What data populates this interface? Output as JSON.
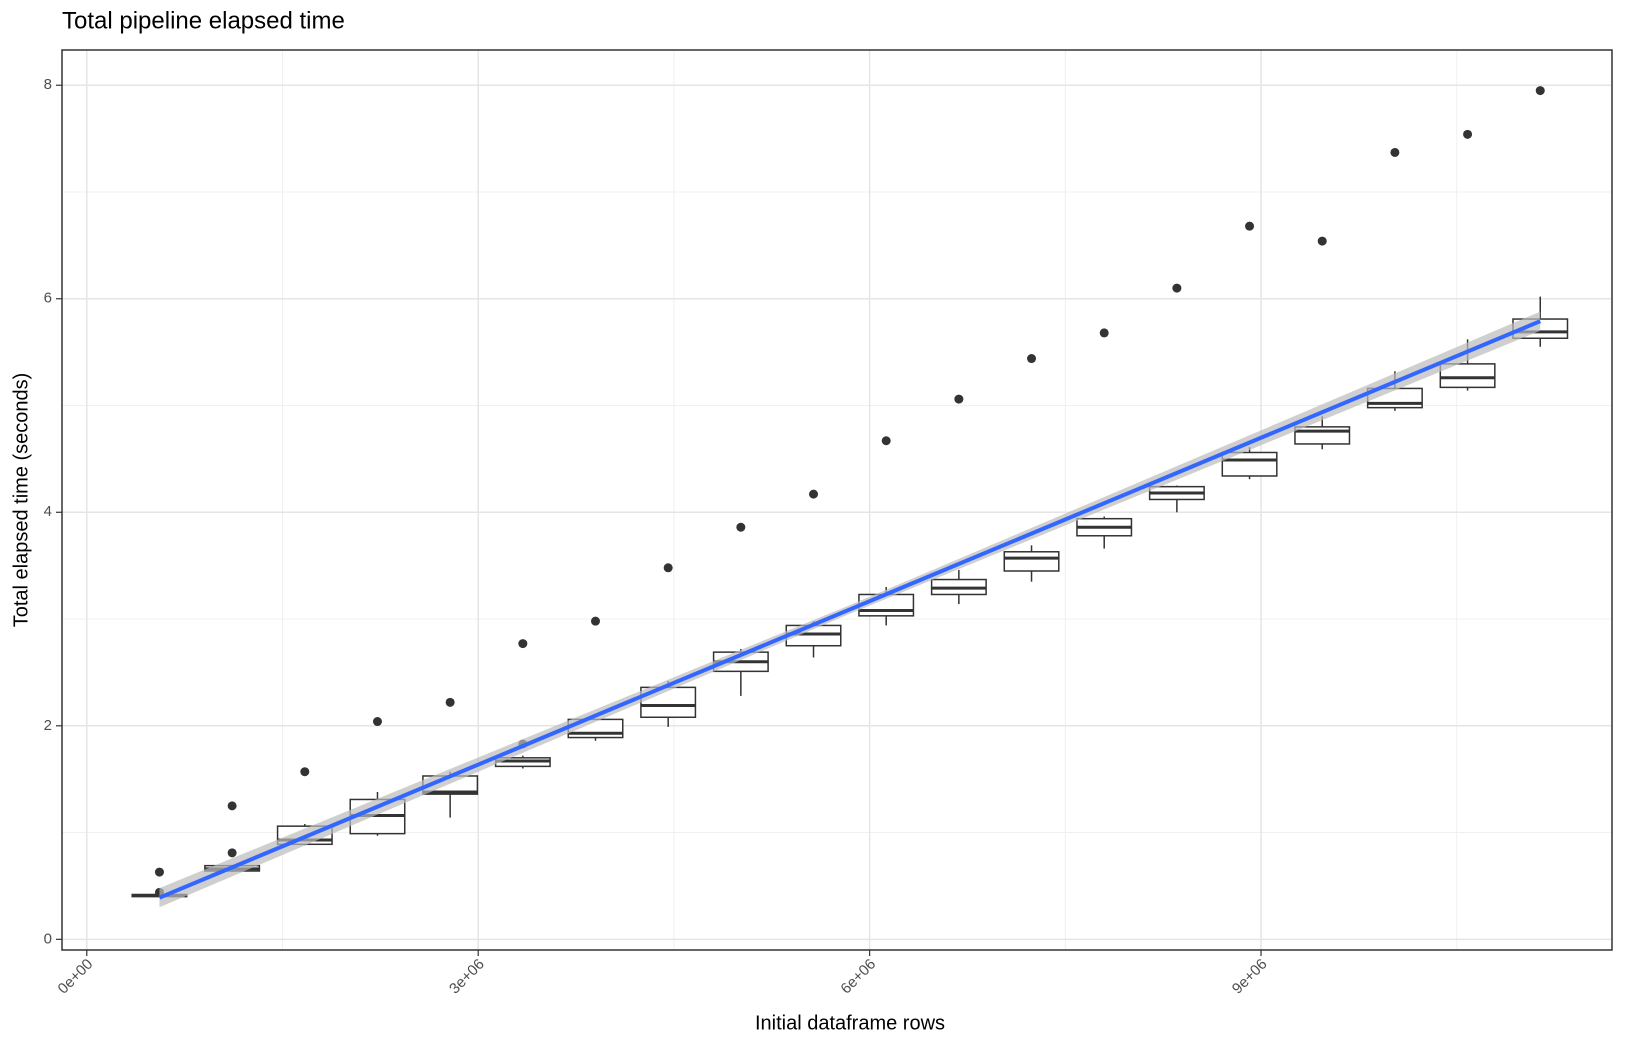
{
  "chart_data": {
    "type": "boxplot",
    "title": "Total pipeline elapsed time",
    "x_label": "Initial dataframe rows",
    "y_label": "Total elapsed time (seconds)",
    "xlim": [
      -190000,
      11690000
    ],
    "ylim": [
      -0.1,
      8.33
    ],
    "xticks": [
      {
        "value": 0,
        "label": "0e+00"
      },
      {
        "value": 3000000,
        "label": "3e+06"
      },
      {
        "value": 6000000,
        "label": "6e+06"
      },
      {
        "value": 9000000,
        "label": "9e+06"
      }
    ],
    "yticks": [
      0,
      2,
      4,
      6,
      8
    ],
    "x_minor_ticks": [
      1500000,
      4500000,
      7500000,
      10500000
    ],
    "y_minor_ticks": [
      1,
      3,
      5,
      7
    ],
    "grid": true,
    "box_color": "#333333",
    "boxes": [
      {
        "x": 557000,
        "lower_whisker": 0.4,
        "q1": 0.4,
        "median": 0.41,
        "q3": 0.42,
        "upper_whisker": 0.42,
        "outliers": [
          0.63,
          0.44
        ]
      },
      {
        "x": 1114000,
        "lower_whisker": 0.63,
        "q1": 0.64,
        "median": 0.66,
        "q3": 0.69,
        "upper_whisker": 0.69,
        "outliers": [
          1.25,
          0.81
        ]
      },
      {
        "x": 1671000,
        "lower_whisker": 0.88,
        "q1": 0.89,
        "median": 0.93,
        "q3": 1.06,
        "upper_whisker": 1.08,
        "outliers": [
          1.57
        ]
      },
      {
        "x": 2228000,
        "lower_whisker": 0.97,
        "q1": 0.99,
        "median": 1.16,
        "q3": 1.31,
        "upper_whisker": 1.38,
        "outliers": [
          2.04
        ]
      },
      {
        "x": 2785000,
        "lower_whisker": 1.14,
        "q1": 1.36,
        "median": 1.38,
        "q3": 1.53,
        "upper_whisker": 1.57,
        "outliers": [
          2.22
        ]
      },
      {
        "x": 3342000,
        "lower_whisker": 1.6,
        "q1": 1.62,
        "median": 1.67,
        "q3": 1.7,
        "upper_whisker": 1.72,
        "outliers": [
          2.77,
          1.83
        ]
      },
      {
        "x": 3899000,
        "lower_whisker": 1.86,
        "q1": 1.89,
        "median": 1.93,
        "q3": 2.06,
        "upper_whisker": 2.06,
        "outliers": [
          2.98
        ]
      },
      {
        "x": 4456000,
        "lower_whisker": 1.99,
        "q1": 2.08,
        "median": 2.19,
        "q3": 2.36,
        "upper_whisker": 2.42,
        "outliers": [
          3.48
        ]
      },
      {
        "x": 5013000,
        "lower_whisker": 2.28,
        "q1": 2.51,
        "median": 2.6,
        "q3": 2.69,
        "upper_whisker": 2.72,
        "outliers": [
          3.86
        ]
      },
      {
        "x": 5570000,
        "lower_whisker": 2.64,
        "q1": 2.75,
        "median": 2.86,
        "q3": 2.94,
        "upper_whisker": 2.98,
        "outliers": [
          4.17
        ]
      },
      {
        "x": 6127000,
        "lower_whisker": 2.94,
        "q1": 3.03,
        "median": 3.08,
        "q3": 3.23,
        "upper_whisker": 3.3,
        "outliers": [
          4.67
        ]
      },
      {
        "x": 6684000,
        "lower_whisker": 3.14,
        "q1": 3.23,
        "median": 3.29,
        "q3": 3.37,
        "upper_whisker": 3.46,
        "outliers": [
          5.06
        ]
      },
      {
        "x": 7241000,
        "lower_whisker": 3.35,
        "q1": 3.45,
        "median": 3.57,
        "q3": 3.63,
        "upper_whisker": 3.69,
        "outliers": [
          5.44
        ]
      },
      {
        "x": 7798000,
        "lower_whisker": 3.66,
        "q1": 3.78,
        "median": 3.86,
        "q3": 3.94,
        "upper_whisker": 3.96,
        "outliers": [
          5.68
        ]
      },
      {
        "x": 8355000,
        "lower_whisker": 4.0,
        "q1": 4.12,
        "median": 4.18,
        "q3": 4.24,
        "upper_whisker": 4.25,
        "outliers": [
          6.1
        ]
      },
      {
        "x": 8912000,
        "lower_whisker": 4.31,
        "q1": 4.34,
        "median": 4.49,
        "q3": 4.56,
        "upper_whisker": 4.61,
        "outliers": [
          6.68
        ]
      },
      {
        "x": 9469000,
        "lower_whisker": 4.59,
        "q1": 4.64,
        "median": 4.76,
        "q3": 4.8,
        "upper_whisker": 4.9,
        "outliers": [
          6.54
        ]
      },
      {
        "x": 10026000,
        "lower_whisker": 4.95,
        "q1": 4.98,
        "median": 5.02,
        "q3": 5.16,
        "upper_whisker": 5.32,
        "outliers": [
          7.37
        ]
      },
      {
        "x": 10583000,
        "lower_whisker": 5.14,
        "q1": 5.17,
        "median": 5.26,
        "q3": 5.39,
        "upper_whisker": 5.62,
        "outliers": [
          7.54
        ]
      },
      {
        "x": 11140000,
        "lower_whisker": 5.55,
        "q1": 5.63,
        "median": 5.69,
        "q3": 5.81,
        "upper_whisker": 6.02,
        "outliers": [
          7.95
        ]
      }
    ],
    "trend": {
      "color": "#3366ff",
      "band_color": "#bbbbbb",
      "x": [
        557000,
        5848500,
        11140000
      ],
      "y": [
        0.39,
        3.09,
        5.79
      ],
      "lower": [
        0.3,
        3.05,
        5.7
      ],
      "upper": [
        0.48,
        3.13,
        5.88
      ]
    }
  }
}
